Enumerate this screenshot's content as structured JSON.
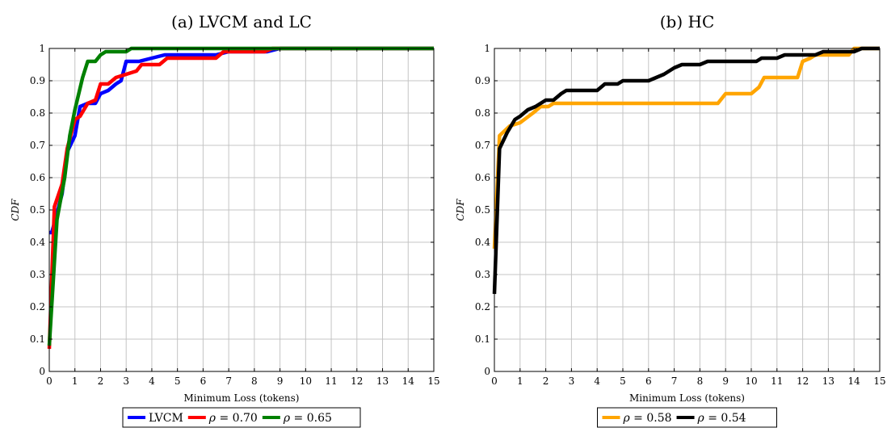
{
  "chart_data": [
    {
      "type": "line",
      "title": "(a) LVCM and LC",
      "xlabel": "Minimum Loss (tokens)",
      "ylabel": "CDF",
      "xlim": [
        0,
        15
      ],
      "ylim": [
        0,
        1
      ],
      "x_ticks": [
        "0",
        "1",
        "2",
        "3",
        "4",
        "5",
        "6",
        "7",
        "8",
        "9",
        "10",
        "11",
        "12",
        "13",
        "14",
        "15"
      ],
      "y_ticks": [
        "0",
        "0.1",
        "0.2",
        "0.3",
        "0.4",
        "0.5",
        "0.6",
        "0.7",
        "0.8",
        "0.9",
        "1"
      ],
      "grid": true,
      "legend_position": "below",
      "series": [
        {
          "name": "LVCM",
          "color": "#0000ff",
          "points": [
            [
              0,
              0.43
            ],
            [
              0.1,
              0.43
            ],
            [
              0.2,
              0.46
            ],
            [
              0.5,
              0.55
            ],
            [
              0.7,
              0.68
            ],
            [
              1.0,
              0.73
            ],
            [
              1.2,
              0.82
            ],
            [
              1.5,
              0.83
            ],
            [
              1.8,
              0.83
            ],
            [
              2.0,
              0.86
            ],
            [
              2.3,
              0.87
            ],
            [
              2.6,
              0.89
            ],
            [
              2.8,
              0.9
            ],
            [
              3.0,
              0.96
            ],
            [
              3.5,
              0.96
            ],
            [
              4.0,
              0.97
            ],
            [
              4.5,
              0.98
            ],
            [
              5.0,
              0.98
            ],
            [
              6.5,
              0.98
            ],
            [
              7.0,
              0.99
            ],
            [
              8.5,
              0.99
            ],
            [
              9.0,
              1.0
            ],
            [
              15,
              1.0
            ]
          ]
        },
        {
          "name": "ρ = 0.70",
          "color": "#ff0000",
          "points": [
            [
              0,
              0.07
            ],
            [
              0.2,
              0.51
            ],
            [
              0.5,
              0.58
            ],
            [
              0.7,
              0.69
            ],
            [
              1.0,
              0.78
            ],
            [
              1.2,
              0.79
            ],
            [
              1.5,
              0.83
            ],
            [
              1.8,
              0.84
            ],
            [
              2.0,
              0.89
            ],
            [
              2.3,
              0.89
            ],
            [
              2.6,
              0.91
            ],
            [
              3.0,
              0.92
            ],
            [
              3.4,
              0.93
            ],
            [
              3.6,
              0.95
            ],
            [
              4.3,
              0.95
            ],
            [
              4.6,
              0.97
            ],
            [
              6.5,
              0.97
            ],
            [
              6.8,
              0.99
            ],
            [
              8.4,
              0.99
            ],
            [
              8.7,
              1.0
            ],
            [
              15,
              1.0
            ]
          ]
        },
        {
          "name": "ρ = 0.65",
          "color": "#008000",
          "points": [
            [
              0,
              0.08
            ],
            [
              0.3,
              0.47
            ],
            [
              0.6,
              0.6
            ],
            [
              0.8,
              0.73
            ],
            [
              1.0,
              0.81
            ],
            [
              1.3,
              0.91
            ],
            [
              1.5,
              0.96
            ],
            [
              1.8,
              0.96
            ],
            [
              2.0,
              0.98
            ],
            [
              2.2,
              0.99
            ],
            [
              3.0,
              0.99
            ],
            [
              3.2,
              1.0
            ],
            [
              15,
              1.0
            ]
          ]
        }
      ]
    },
    {
      "type": "line",
      "title": "(b) HC",
      "xlabel": "Minimum Loss (tokens)",
      "ylabel": "CDF",
      "xlim": [
        0,
        15
      ],
      "ylim": [
        0,
        1
      ],
      "x_ticks": [
        "0",
        "1",
        "2",
        "3",
        "4",
        "5",
        "6",
        "7",
        "8",
        "9",
        "10",
        "11",
        "12",
        "13",
        "14",
        "15"
      ],
      "y_ticks": [
        "0",
        "0.1",
        "0.2",
        "0.3",
        "0.4",
        "0.5",
        "0.6",
        "0.7",
        "0.8",
        "0.9",
        "1"
      ],
      "grid": true,
      "legend_position": "below",
      "series": [
        {
          "name": "ρ = 0.58",
          "color": "#ffa500",
          "points": [
            [
              0,
              0.38
            ],
            [
              0.2,
              0.73
            ],
            [
              0.6,
              0.76
            ],
            [
              1.0,
              0.77
            ],
            [
              1.5,
              0.8
            ],
            [
              1.8,
              0.82
            ],
            [
              2.1,
              0.82
            ],
            [
              2.3,
              0.83
            ],
            [
              8.7,
              0.83
            ],
            [
              9.0,
              0.86
            ],
            [
              10.0,
              0.86
            ],
            [
              10.3,
              0.88
            ],
            [
              10.5,
              0.91
            ],
            [
              11.8,
              0.91
            ],
            [
              12.0,
              0.96
            ],
            [
              12.3,
              0.97
            ],
            [
              12.5,
              0.98
            ],
            [
              13.8,
              0.98
            ],
            [
              14.0,
              1.0
            ],
            [
              15,
              1.0
            ]
          ]
        },
        {
          "name": "ρ = 0.54",
          "color": "#000000",
          "points": [
            [
              0,
              0.24
            ],
            [
              0.2,
              0.69
            ],
            [
              0.5,
              0.74
            ],
            [
              0.8,
              0.78
            ],
            [
              1.0,
              0.79
            ],
            [
              1.3,
              0.81
            ],
            [
              1.6,
              0.82
            ],
            [
              1.8,
              0.83
            ],
            [
              2.0,
              0.84
            ],
            [
              2.3,
              0.84
            ],
            [
              2.6,
              0.86
            ],
            [
              2.8,
              0.87
            ],
            [
              4.0,
              0.87
            ],
            [
              4.3,
              0.89
            ],
            [
              4.8,
              0.89
            ],
            [
              5.0,
              0.9
            ],
            [
              6.0,
              0.9
            ],
            [
              6.3,
              0.91
            ],
            [
              6.6,
              0.92
            ],
            [
              7.0,
              0.94
            ],
            [
              7.3,
              0.95
            ],
            [
              8.0,
              0.95
            ],
            [
              8.3,
              0.96
            ],
            [
              10.2,
              0.96
            ],
            [
              10.4,
              0.97
            ],
            [
              11.0,
              0.97
            ],
            [
              11.3,
              0.98
            ],
            [
              12.5,
              0.98
            ],
            [
              12.8,
              0.99
            ],
            [
              14.0,
              0.99
            ],
            [
              14.3,
              1.0
            ],
            [
              15,
              1.0
            ]
          ]
        }
      ]
    }
  ]
}
